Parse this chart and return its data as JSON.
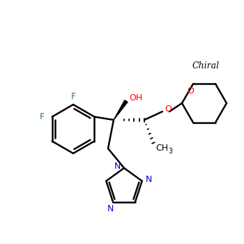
{
  "background_color": "#ffffff",
  "bond_color": "#000000",
  "nitrogen_color": "#0000cd",
  "oxygen_color": "#ff0000",
  "fluorine_color": "#228b22",
  "chiral_label": "Chiral",
  "chiral_label_color": "#000000",
  "oh_label": "OH",
  "o_label": "O",
  "f_label": "F",
  "ch3_label": "CH",
  "ch3_sub": "3",
  "n_label": "N",
  "figsize": [
    3.5,
    3.5
  ],
  "dpi": 100
}
